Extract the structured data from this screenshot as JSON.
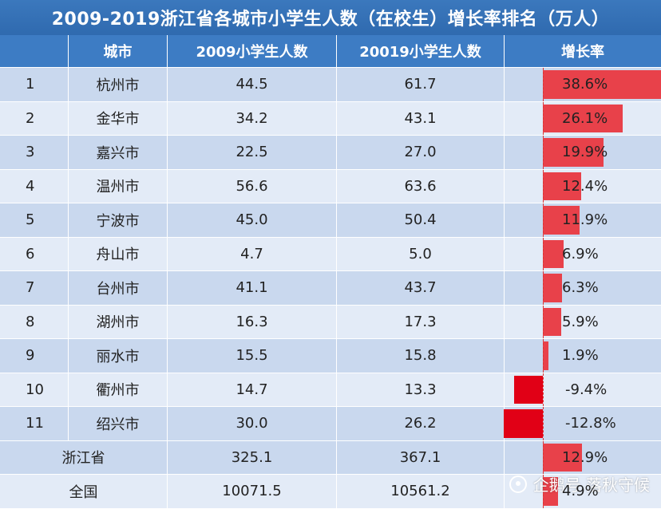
{
  "title": "2009-2019浙江省各城市小学生人数（在校生）增长率排名（万人）",
  "headers": {
    "rank": "",
    "city": "城市",
    "v2009": "2009小学生人数",
    "v2019": "20019小学生人数",
    "rate": "增长率"
  },
  "chart_data": {
    "type": "table",
    "title": "2009-2019浙江省各城市小学生人数（在校生）增长率排名（万人）",
    "columns": [
      "",
      "城市",
      "2009小学生人数",
      "20019小学生人数",
      "增长率"
    ],
    "rows": [
      {
        "rank": "1",
        "city": "杭州市",
        "v2009": "44.5",
        "v2019": "61.7",
        "rate_text": "38.6%",
        "rate": 38.6
      },
      {
        "rank": "2",
        "city": "金华市",
        "v2009": "34.2",
        "v2019": "43.1",
        "rate_text": "26.1%",
        "rate": 26.1
      },
      {
        "rank": "3",
        "city": "嘉兴市",
        "v2009": "22.5",
        "v2019": "27.0",
        "rate_text": "19.9%",
        "rate": 19.9
      },
      {
        "rank": "4",
        "city": "温州市",
        "v2009": "56.6",
        "v2019": "63.6",
        "rate_text": "12.4%",
        "rate": 12.4
      },
      {
        "rank": "5",
        "city": "宁波市",
        "v2009": "45.0",
        "v2019": "50.4",
        "rate_text": "11.9%",
        "rate": 11.9
      },
      {
        "rank": "6",
        "city": "舟山市",
        "v2009": "4.7",
        "v2019": "5.0",
        "rate_text": "6.9%",
        "rate": 6.9
      },
      {
        "rank": "7",
        "city": "台州市",
        "v2009": "41.1",
        "v2019": "43.7",
        "rate_text": "6.3%",
        "rate": 6.3
      },
      {
        "rank": "8",
        "city": "湖州市",
        "v2009": "16.3",
        "v2019": "17.3",
        "rate_text": "5.9%",
        "rate": 5.9
      },
      {
        "rank": "9",
        "city": "丽水市",
        "v2009": "15.5",
        "v2019": "15.8",
        "rate_text": "1.9%",
        "rate": 1.9
      },
      {
        "rank": "10",
        "city": "衢州市",
        "v2009": "14.7",
        "v2019": "13.3",
        "rate_text": "-9.4%",
        "rate": -9.4
      },
      {
        "rank": "11",
        "city": "绍兴市",
        "v2009": "30.0",
        "v2019": "26.2",
        "rate_text": "-12.8%",
        "rate": -12.8
      }
    ],
    "totals": [
      {
        "label": "浙江省",
        "v2009": "325.1",
        "v2019": "367.1",
        "rate_text": "12.9%",
        "rate": 12.9
      },
      {
        "label": "全国",
        "v2009": "10071.5",
        "v2019": "10561.2",
        "rate_text": "4.9%",
        "rate": 4.9
      }
    ]
  },
  "watermark": {
    "text": "企鹅号 落秋守候",
    "icon": "penguin-icon"
  },
  "colors": {
    "header": "#3d7cc4",
    "bar_positive": "#e8414a",
    "bar_negative": "#e10016"
  }
}
